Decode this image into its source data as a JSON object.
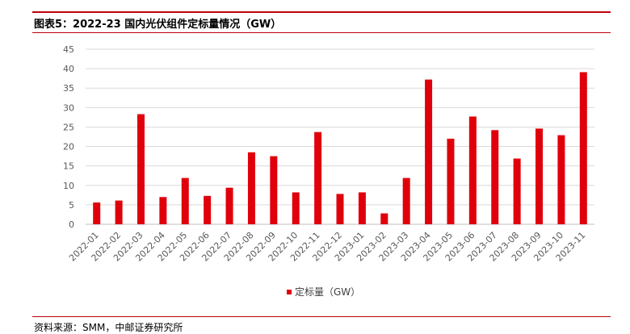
{
  "title": "图表5：2022-23 国内光伏组件定标量情况（GW）",
  "source": "资料来源：SMM，中邮证券研究所",
  "colors": {
    "bar": "#e0000b",
    "rule": "#c0000b",
    "grid": "#d9d9d9"
  },
  "chart_data": {
    "type": "bar",
    "categories": [
      "2022-01",
      "2022-02",
      "2022-03",
      "2022-04",
      "2022-05",
      "2022-06",
      "2022-07",
      "2022-08",
      "2022-09",
      "2022-10",
      "2022-11",
      "2022-12",
      "2023-01",
      "2023-02",
      "2023-03",
      "2023-04",
      "2023-05",
      "2023-06",
      "2023-07",
      "2023-08",
      "2023-09",
      "2023-10",
      "2023-11"
    ],
    "series": [
      {
        "name": "定标量（GW）",
        "values": [
          5.6,
          6.1,
          28.3,
          7.0,
          11.9,
          7.3,
          9.4,
          18.5,
          17.5,
          8.2,
          23.7,
          7.8,
          8.2,
          2.8,
          11.9,
          37.2,
          22.0,
          27.7,
          24.2,
          16.9,
          24.6,
          22.9,
          39.1
        ]
      }
    ],
    "ylim": [
      0,
      45
    ],
    "yticks": [
      0,
      5,
      10,
      15,
      20,
      25,
      30,
      35,
      40,
      45
    ],
    "grid": true,
    "legend": "bottom"
  }
}
